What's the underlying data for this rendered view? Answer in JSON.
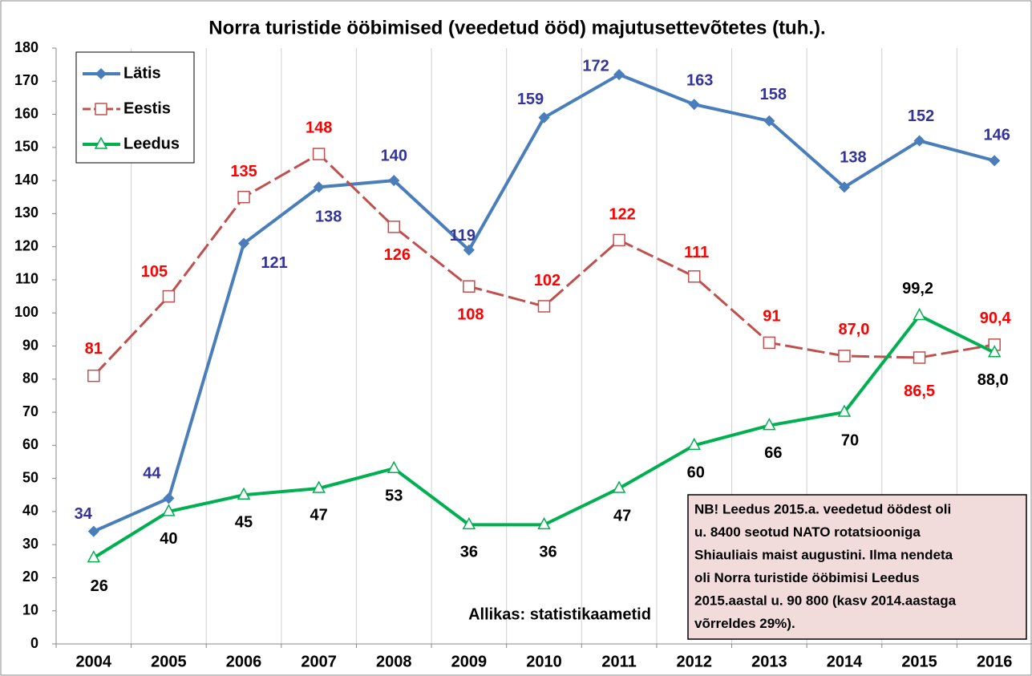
{
  "chart_data": {
    "type": "line",
    "title": "Norra turistide ööbimised (veedetud ööd) majutusettevõtetes (tuh.).",
    "categories": [
      "2004",
      "2005",
      "2006",
      "2007",
      "2008",
      "2009",
      "2010",
      "2011",
      "2012",
      "2013",
      "2014",
      "2015",
      "2016"
    ],
    "series": [
      {
        "name": "Lätis",
        "color": "#4a7ebb",
        "label_color": "#333399",
        "marker": "diamond",
        "values": [
          34,
          44,
          121,
          138,
          140,
          119,
          159,
          172,
          163,
          158,
          138,
          152,
          146
        ]
      },
      {
        "name": "Eestis",
        "color": "#c0504d",
        "label_color": "#ff0000",
        "marker": "square",
        "dashed": true,
        "values": [
          81,
          105,
          135,
          148,
          126,
          108,
          102,
          122,
          111,
          91,
          87.0,
          86.5,
          90.4
        ],
        "value_labels": [
          "81",
          "105",
          "135",
          "148",
          "126",
          "108",
          "102",
          "122",
          "111",
          "91",
          "87,0",
          "86,5",
          "90,4"
        ]
      },
      {
        "name": "Leedus",
        "color": "#00b050",
        "label_color": "#000000",
        "marker": "triangle",
        "values": [
          26,
          40,
          45,
          47,
          53,
          36,
          36,
          47,
          60,
          66,
          70,
          99.2,
          88.0
        ],
        "value_labels": [
          "26",
          "40",
          "45",
          "47",
          "53",
          "36",
          "36",
          "47",
          "60",
          "66",
          "70",
          "99,2",
          "88,0"
        ]
      }
    ],
    "ylim": [
      0,
      180
    ],
    "yticks": [
      0,
      10,
      20,
      30,
      40,
      50,
      60,
      70,
      80,
      90,
      100,
      110,
      120,
      130,
      140,
      150,
      160,
      170,
      180
    ],
    "legend": "upper left",
    "source": "Allikas: statistikaametid",
    "annotation": [
      "NB! Leedus 2015.a. veedetud öödest oli",
      "u. 8400 seotud NATO rotatsiooniga",
      "Shiauliais maist augustini. Ilma nendeta",
      "oli Norra turistide ööbimisi Leedus",
      "2015.aastal u. 90 800 (kasv 2014.aastaga",
      "võrreldes 29%)."
    ]
  }
}
